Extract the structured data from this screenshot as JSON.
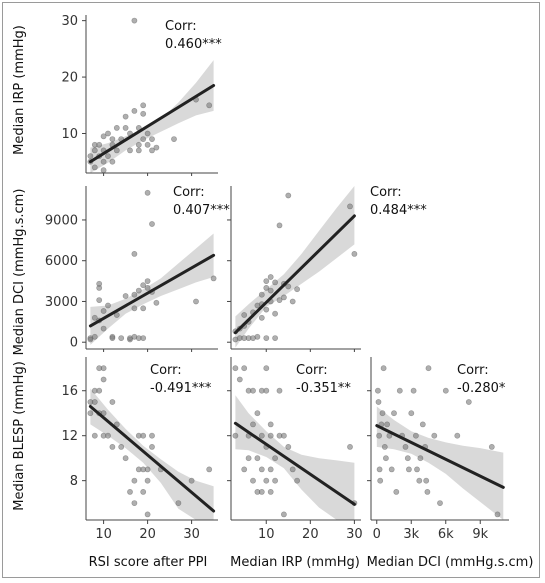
{
  "chart_data": [
    {
      "id": "p11",
      "type": "scatter",
      "xlim": [
        6,
        36
      ],
      "ylim": [
        3,
        31
      ],
      "yticks": [
        10,
        20,
        30
      ],
      "ytick_labels": [
        "10",
        "20",
        "30"
      ],
      "ylabel": "Median IRP (mmHg)",
      "corr_label": "Corr:",
      "corr_value": "0.460***",
      "fit": {
        "x": [
          7,
          35
        ],
        "y": [
          5,
          18.5
        ]
      },
      "ci_band": {
        "x": [
          7,
          11,
          15,
          19,
          23,
          27,
          31,
          35
        ],
        "upper": [
          7.5,
          8.3,
          9.5,
          10.8,
          12.5,
          15.5,
          19.0,
          23.0
        ],
        "lower": [
          2.5,
          4.8,
          7.0,
          8.8,
          10.3,
          11.8,
          13.2,
          14.0
        ]
      },
      "points": [
        [
          7,
          5
        ],
        [
          7,
          6
        ],
        [
          8,
          4
        ],
        [
          8,
          7
        ],
        [
          8,
          8
        ],
        [
          9,
          6
        ],
        [
          9,
          8
        ],
        [
          10,
          3.5
        ],
        [
          10,
          5
        ],
        [
          10,
          7
        ],
        [
          10,
          9.5
        ],
        [
          11,
          6
        ],
        [
          11,
          10
        ],
        [
          12,
          5
        ],
        [
          12,
          8
        ],
        [
          12,
          9
        ],
        [
          13,
          7
        ],
        [
          13,
          11
        ],
        [
          14,
          9
        ],
        [
          15,
          11
        ],
        [
          15,
          13
        ],
        [
          16,
          7
        ],
        [
          16,
          10
        ],
        [
          17,
          14
        ],
        [
          17,
          30
        ],
        [
          18,
          11
        ],
        [
          18,
          8
        ],
        [
          18,
          7
        ],
        [
          19,
          9
        ],
        [
          19,
          15
        ],
        [
          19,
          13.5
        ],
        [
          20,
          8
        ],
        [
          20,
          10
        ],
        [
          21,
          7
        ],
        [
          21,
          9
        ],
        [
          22,
          7.5
        ],
        [
          26,
          9
        ],
        [
          31,
          16
        ],
        [
          34,
          15
        ]
      ]
    },
    {
      "id": "p21",
      "type": "scatter",
      "xlim": [
        6,
        36
      ],
      "ylim": [
        -500,
        11500
      ],
      "yticks": [
        0,
        3000,
        6000,
        9000
      ],
      "ytick_labels": [
        "0",
        "3000",
        "6000",
        "9000"
      ],
      "ylabel": "Median DCI (mmHg.s.cm)",
      "corr_label": "Corr:",
      "corr_value": "0.407***",
      "fit": {
        "x": [
          7,
          35
        ],
        "y": [
          1200,
          6400
        ]
      },
      "ci_band": {
        "x": [
          7,
          11,
          15,
          19,
          23,
          27,
          31,
          35
        ],
        "upper": [
          2600,
          2700,
          3200,
          3900,
          4700,
          5800,
          6900,
          8000
        ],
        "lower": [
          -200,
          1000,
          2100,
          2800,
          3400,
          3900,
          4400,
          4800
        ]
      },
      "points": [
        [
          7,
          300
        ],
        [
          7,
          200
        ],
        [
          8,
          1800
        ],
        [
          8,
          400
        ],
        [
          9,
          4000
        ],
        [
          9,
          4300
        ],
        [
          9,
          3100
        ],
        [
          9,
          1600
        ],
        [
          10,
          1000
        ],
        [
          10,
          2300
        ],
        [
          11,
          2700
        ],
        [
          12,
          400
        ],
        [
          12,
          300
        ],
        [
          13,
          2000
        ],
        [
          14,
          300
        ],
        [
          15,
          3400
        ],
        [
          16,
          200
        ],
        [
          16,
          300
        ],
        [
          17,
          3500
        ],
        [
          17,
          6500
        ],
        [
          17,
          2500
        ],
        [
          17,
          400
        ],
        [
          18,
          3800
        ],
        [
          18,
          300
        ],
        [
          19,
          4200
        ],
        [
          19,
          2500
        ],
        [
          19,
          300
        ],
        [
          20,
          4500
        ],
        [
          20,
          11000
        ],
        [
          20,
          4000
        ],
        [
          21,
          8700
        ],
        [
          21,
          3700
        ],
        [
          22,
          2900
        ],
        [
          31,
          3000
        ],
        [
          35,
          4700
        ]
      ]
    },
    {
      "id": "p22",
      "type": "scatter",
      "xlim": [
        2,
        31.5
      ],
      "ylim": [
        -500,
        11500
      ],
      "yticks": [
        0,
        3000,
        6000,
        9000
      ],
      "ytick_labels": [],
      "corr_label": "Corr:",
      "corr_value": "0.484***",
      "fit": {
        "x": [
          3,
          30
        ],
        "y": [
          700,
          9300
        ]
      },
      "ci_band": {
        "x": [
          3,
          6,
          10,
          14,
          18,
          22,
          26,
          30
        ],
        "upper": [
          1900,
          2800,
          3900,
          5000,
          6500,
          8200,
          9900,
          11500
        ],
        "lower": [
          -400,
          1000,
          2600,
          3400,
          4300,
          5200,
          6200,
          7200
        ]
      },
      "points": [
        [
          3,
          200
        ],
        [
          3,
          800
        ],
        [
          4,
          1000
        ],
        [
          4,
          300
        ],
        [
          5,
          1200
        ],
        [
          5,
          300
        ],
        [
          5,
          2000
        ],
        [
          6,
          300
        ],
        [
          6,
          1500
        ],
        [
          7,
          2200
        ],
        [
          7,
          300
        ],
        [
          8,
          2700
        ],
        [
          8,
          400
        ],
        [
          9,
          3500
        ],
        [
          9,
          1800
        ],
        [
          9,
          2800
        ],
        [
          10,
          4500
        ],
        [
          10,
          4000
        ],
        [
          10,
          2400
        ],
        [
          10,
          300
        ],
        [
          11,
          3800
        ],
        [
          11,
          4800
        ],
        [
          11,
          3000
        ],
        [
          12,
          4400
        ],
        [
          12,
          2100
        ],
        [
          12,
          300
        ],
        [
          13,
          3100
        ],
        [
          13,
          8600
        ],
        [
          14,
          3300
        ],
        [
          14,
          4300
        ],
        [
          15,
          10800
        ],
        [
          15,
          4100
        ],
        [
          16,
          3000
        ],
        [
          17,
          3900
        ],
        [
          29,
          10000
        ],
        [
          30,
          6500
        ]
      ]
    },
    {
      "id": "p31",
      "type": "scatter",
      "xlim": [
        6,
        36
      ],
      "ylim": [
        4.5,
        19
      ],
      "yticks": [
        8,
        12,
        16
      ],
      "ytick_labels": [
        "8",
        "12",
        "16"
      ],
      "ylabel": "Median BLESP (mmHg)",
      "corr_label": "Corr:",
      "corr_value": "-0.491***",
      "fit": {
        "x": [
          7,
          35
        ],
        "y": [
          14.6,
          5.3
        ]
      },
      "ci_band": {
        "x": [
          7,
          11,
          15,
          19,
          23,
          27,
          31,
          35
        ],
        "upper": [
          16.2,
          14.3,
          12.6,
          11.1,
          9.9,
          8.8,
          8.0,
          7.5
        ],
        "lower": [
          13.0,
          12.0,
          10.9,
          9.6,
          7.8,
          5.5,
          3.2,
          1.0
        ]
      },
      "points": [
        [
          7,
          15
        ],
        [
          7,
          14
        ],
        [
          8,
          16
        ],
        [
          8,
          15
        ],
        [
          8,
          12
        ],
        [
          9,
          18
        ],
        [
          9,
          16
        ],
        [
          9,
          14
        ],
        [
          10,
          18
        ],
        [
          10,
          17
        ],
        [
          10,
          14
        ],
        [
          10,
          12
        ],
        [
          11,
          12
        ],
        [
          12,
          11
        ],
        [
          12,
          15
        ],
        [
          13,
          13
        ],
        [
          14,
          11
        ],
        [
          15,
          10
        ],
        [
          16,
          7
        ],
        [
          17,
          6
        ],
        [
          17,
          8
        ],
        [
          18,
          12
        ],
        [
          18,
          9
        ],
        [
          19,
          9
        ],
        [
          19,
          7
        ],
        [
          19,
          12
        ],
        [
          20,
          8
        ],
        [
          20,
          5
        ],
        [
          20,
          9
        ],
        [
          21,
          12
        ],
        [
          21,
          11
        ],
        [
          23,
          9
        ],
        [
          27,
          6
        ],
        [
          30,
          8
        ],
        [
          34,
          9
        ]
      ]
    },
    {
      "id": "p32",
      "type": "scatter",
      "xlim": [
        2,
        31.5
      ],
      "ylim": [
        4.5,
        19
      ],
      "yticks": [
        8,
        12,
        16
      ],
      "ytick_labels": [],
      "corr_label": "Corr:",
      "corr_value": "-0.351**",
      "fit": {
        "x": [
          3,
          30
        ],
        "y": [
          13.1,
          5.9
        ]
      },
      "ci_band": {
        "x": [
          3,
          6,
          10,
          14,
          18,
          22,
          26,
          30
        ],
        "upper": [
          15.6,
          14.0,
          12.4,
          11.0,
          10.3,
          10.0,
          9.8,
          9.6
        ],
        "lower": [
          10.8,
          10.7,
          10.1,
          9.1,
          7.2,
          5.6,
          3.8,
          2.2
        ]
      },
      "points": [
        [
          3,
          18
        ],
        [
          3,
          12
        ],
        [
          4,
          17
        ],
        [
          5,
          18
        ],
        [
          5,
          9
        ],
        [
          6,
          16
        ],
        [
          6,
          12
        ],
        [
          6,
          10
        ],
        [
          7,
          16
        ],
        [
          7,
          13
        ],
        [
          7,
          8
        ],
        [
          8,
          14
        ],
        [
          8,
          10
        ],
        [
          8,
          7
        ],
        [
          9,
          16
        ],
        [
          9,
          12
        ],
        [
          9,
          9
        ],
        [
          9,
          7
        ],
        [
          10,
          18
        ],
        [
          10,
          16
        ],
        [
          10,
          11
        ],
        [
          10,
          8
        ],
        [
          11,
          13
        ],
        [
          11,
          12
        ],
        [
          11,
          9
        ],
        [
          11,
          7
        ],
        [
          12,
          10
        ],
        [
          12,
          8
        ],
        [
          13,
          16
        ],
        [
          13,
          12
        ],
        [
          14,
          12
        ],
        [
          14,
          5
        ],
        [
          15,
          11
        ],
        [
          16,
          9
        ],
        [
          17,
          8
        ],
        [
          29,
          11
        ],
        [
          30,
          6
        ]
      ]
    },
    {
      "id": "p33",
      "type": "scatter",
      "xlim": [
        -500,
        11500
      ],
      "ylim": [
        4.5,
        19
      ],
      "yticks": [
        8,
        12,
        16
      ],
      "ytick_labels": [],
      "xticks": [
        0,
        3000,
        6000,
        9000
      ],
      "xtick_labels": [
        "0",
        "3k",
        "6k",
        "9k"
      ],
      "corr_label": "Corr:",
      "corr_value": "-0.280*",
      "fit": {
        "x": [
          0,
          11000
        ],
        "y": [
          12.9,
          7.4
        ]
      },
      "ci_band": {
        "x": [
          0,
          1500,
          3000,
          4500,
          6000,
          7500,
          9000,
          11000
        ],
        "upper": [
          14.6,
          13.4,
          12.4,
          11.8,
          11.4,
          11.1,
          10.9,
          10.5
        ],
        "lower": [
          11.0,
          10.8,
          10.4,
          9.6,
          8.6,
          7.3,
          6.1,
          4.5
        ]
      },
      "points": [
        [
          100,
          16
        ],
        [
          150,
          15
        ],
        [
          200,
          12
        ],
        [
          250,
          9
        ],
        [
          300,
          8
        ],
        [
          400,
          13
        ],
        [
          500,
          14
        ],
        [
          600,
          18
        ],
        [
          700,
          11
        ],
        [
          800,
          10
        ],
        [
          900,
          13
        ],
        [
          1100,
          12
        ],
        [
          1300,
          9
        ],
        [
          1500,
          14
        ],
        [
          1700,
          7
        ],
        [
          2000,
          16
        ],
        [
          2200,
          12
        ],
        [
          2500,
          11
        ],
        [
          2700,
          10
        ],
        [
          2800,
          9
        ],
        [
          3000,
          14
        ],
        [
          3200,
          16
        ],
        [
          3400,
          12
        ],
        [
          3500,
          9
        ],
        [
          3700,
          8
        ],
        [
          3800,
          10
        ],
        [
          4000,
          13
        ],
        [
          4200,
          11
        ],
        [
          4300,
          8
        ],
        [
          4400,
          7
        ],
        [
          4500,
          18
        ],
        [
          5000,
          12
        ],
        [
          5500,
          6
        ],
        [
          6000,
          16
        ],
        [
          7000,
          12
        ],
        [
          8000,
          15
        ],
        [
          10000,
          11
        ],
        [
          10500,
          5
        ]
      ]
    }
  ],
  "x_axes": [
    {
      "label": "RSI score after PPI",
      "ticks": [
        10,
        20,
        30
      ],
      "tick_labels": [
        "10",
        "20",
        "30"
      ]
    },
    {
      "label": "Median IRP (mmHg)",
      "ticks": [
        10,
        20,
        30
      ],
      "tick_labels": [
        "10",
        "20",
        "30"
      ]
    },
    {
      "label": "Median DCI (mmHg.s.cm)",
      "ticks": [
        0,
        3000,
        6000,
        9000
      ],
      "tick_labels": [
        "0",
        "3k",
        "6k",
        "9k"
      ]
    }
  ],
  "colors": {
    "points": "#7a7a7a",
    "fit": "#222222",
    "band": "#d9d9d9",
    "axis": "#444444"
  }
}
